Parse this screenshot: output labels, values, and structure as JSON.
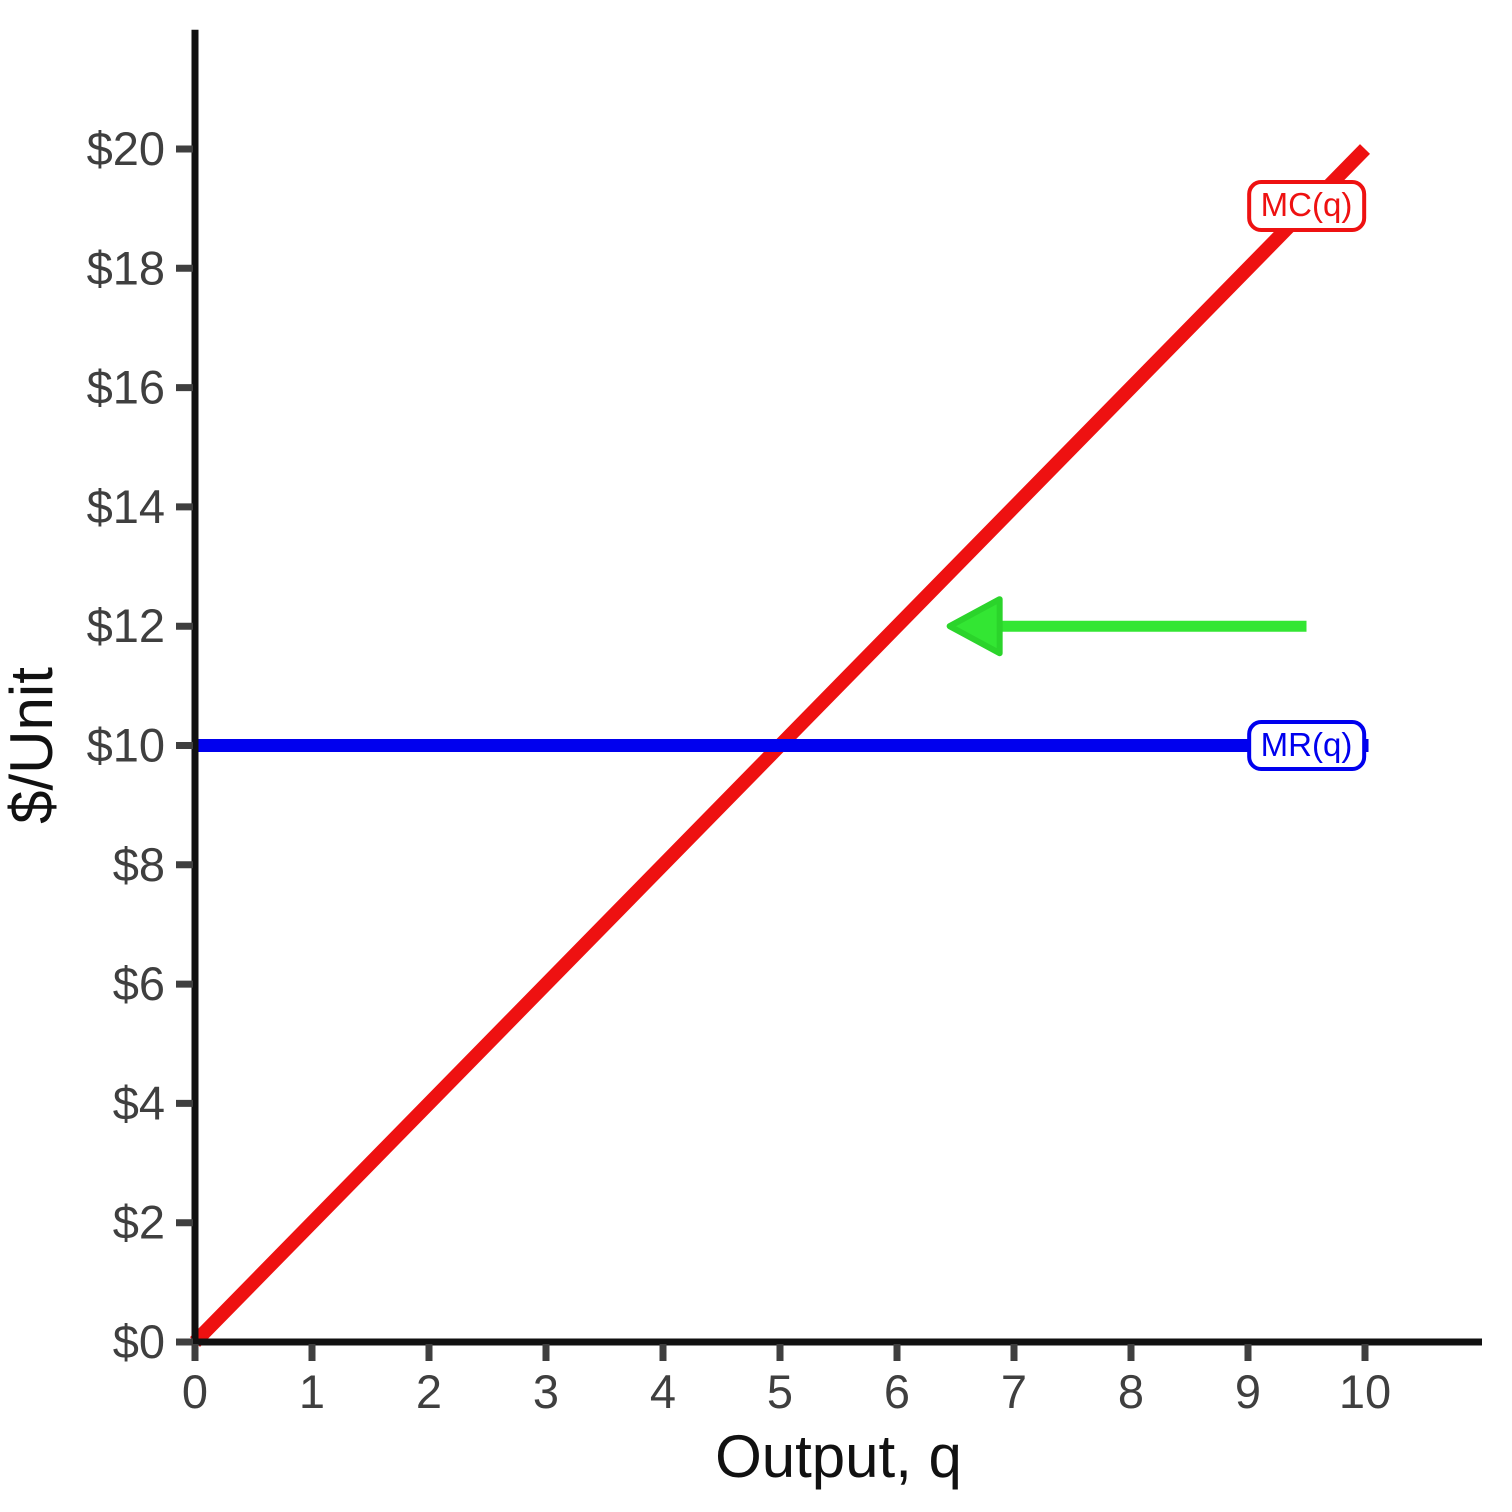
{
  "chart_data": {
    "type": "line",
    "title": "",
    "xlabel": "Output, q",
    "ylabel": "$/Unit",
    "grid": "off",
    "x_axis": {
      "min": 0,
      "max": 11,
      "ticks": [
        {
          "v": 0,
          "label": "0"
        },
        {
          "v": 1,
          "label": "1"
        },
        {
          "v": 2,
          "label": "2"
        },
        {
          "v": 3,
          "label": "3"
        },
        {
          "v": 4,
          "label": "4"
        },
        {
          "v": 5,
          "label": "5"
        },
        {
          "v": 6,
          "label": "6"
        },
        {
          "v": 7,
          "label": "7"
        },
        {
          "v": 8,
          "label": "8"
        },
        {
          "v": 9,
          "label": "9"
        },
        {
          "v": 10,
          "label": "10"
        }
      ]
    },
    "y_axis": {
      "min": 0,
      "max": 22,
      "ticks": [
        {
          "v": 0,
          "label": "$0"
        },
        {
          "v": 2,
          "label": "$2"
        },
        {
          "v": 4,
          "label": "$4"
        },
        {
          "v": 6,
          "label": "$6"
        },
        {
          "v": 8,
          "label": "$8"
        },
        {
          "v": 10,
          "label": "$10"
        },
        {
          "v": 12,
          "label": "$12"
        },
        {
          "v": 14,
          "label": "$14"
        },
        {
          "v": 16,
          "label": "$16"
        },
        {
          "v": 18,
          "label": "$18"
        },
        {
          "v": 20,
          "label": "$20"
        }
      ]
    },
    "series": [
      {
        "name": "MC",
        "label": "MC(q)",
        "color": "#ee1111",
        "width": 14,
        "points": [
          [
            0,
            0
          ],
          [
            10,
            20
          ]
        ],
        "label_at": [
          9.5,
          19.05
        ]
      },
      {
        "name": "MR",
        "label": "MR(q)",
        "color": "#0000ee",
        "width": 13,
        "points": [
          [
            0,
            10
          ],
          [
            10.03,
            10
          ]
        ],
        "label_at": [
          9.5,
          10
        ]
      }
    ],
    "intersection": {
      "q": 5,
      "value": 10
    },
    "annotations": [
      {
        "type": "arrow",
        "direction": "left",
        "color": "#33e633",
        "edge_color": "#2bd42b",
        "from": [
          9.5,
          12
        ],
        "to": [
          6.45,
          12
        ]
      }
    ]
  },
  "colors": {
    "axis": "#111111",
    "tick": "#3f3f3f",
    "background": "#ffffff"
  }
}
